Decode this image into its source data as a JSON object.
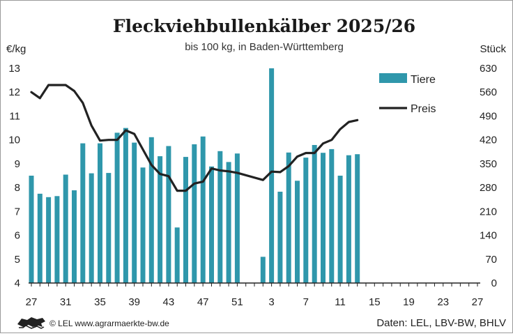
{
  "chart_data": {
    "type": "bar+line",
    "title": "Fleckviehbullenkälber 2025/26",
    "subtitle": "bis 100 kg, in Baden-Württemberg",
    "ylabel_left": "€/kg",
    "ylabel_right": "Stück",
    "ylim_left": [
      4,
      13
    ],
    "ylim_right": [
      0,
      630
    ],
    "yticks_left": [
      "4",
      "5",
      "6",
      "7",
      "8",
      "9",
      "10",
      "11",
      "12",
      "13"
    ],
    "yticks_right": [
      "0",
      "70",
      "140",
      "210",
      "280",
      "350",
      "420",
      "490",
      "560",
      "630"
    ],
    "x_range": [
      0,
      52
    ],
    "xticks": [
      {
        "pos": 0,
        "label": "27"
      },
      {
        "pos": 4,
        "label": "31"
      },
      {
        "pos": 8,
        "label": "35"
      },
      {
        "pos": 12,
        "label": "39"
      },
      {
        "pos": 16,
        "label": "43"
      },
      {
        "pos": 20,
        "label": "47"
      },
      {
        "pos": 24,
        "label": "51"
      },
      {
        "pos": 28,
        "label": "3"
      },
      {
        "pos": 32,
        "label": "7"
      },
      {
        "pos": 36,
        "label": "11"
      },
      {
        "pos": 40,
        "label": "15"
      },
      {
        "pos": 44,
        "label": "19"
      },
      {
        "pos": 48,
        "label": "23"
      },
      {
        "pos": 52,
        "label": "27"
      }
    ],
    "series": [
      {
        "name": "Tiere",
        "type": "bar",
        "axis": "right",
        "color": "#2f97ab",
        "points": [
          {
            "x": 0,
            "y": 315
          },
          {
            "x": 1,
            "y": 262
          },
          {
            "x": 2,
            "y": 252
          },
          {
            "x": 3,
            "y": 255
          },
          {
            "x": 4,
            "y": 318
          },
          {
            "x": 5,
            "y": 272
          },
          {
            "x": 6,
            "y": 410
          },
          {
            "x": 7,
            "y": 322
          },
          {
            "x": 8,
            "y": 410
          },
          {
            "x": 9,
            "y": 323
          },
          {
            "x": 10,
            "y": 441
          },
          {
            "x": 11,
            "y": 455
          },
          {
            "x": 12,
            "y": 412
          },
          {
            "x": 13,
            "y": 339
          },
          {
            "x": 14,
            "y": 428
          },
          {
            "x": 15,
            "y": 372
          },
          {
            "x": 16,
            "y": 402
          },
          {
            "x": 17,
            "y": 163
          },
          {
            "x": 18,
            "y": 370
          },
          {
            "x": 19,
            "y": 407
          },
          {
            "x": 20,
            "y": 430
          },
          {
            "x": 21,
            "y": 342
          },
          {
            "x": 22,
            "y": 387
          },
          {
            "x": 23,
            "y": 355
          },
          {
            "x": 24,
            "y": 380
          },
          {
            "x": 27,
            "y": 77
          },
          {
            "x": 28,
            "y": 630
          },
          {
            "x": 29,
            "y": 268
          },
          {
            "x": 30,
            "y": 383
          },
          {
            "x": 31,
            "y": 300
          },
          {
            "x": 32,
            "y": 368
          },
          {
            "x": 33,
            "y": 405
          },
          {
            "x": 34,
            "y": 382
          },
          {
            "x": 35,
            "y": 393
          },
          {
            "x": 36,
            "y": 315
          },
          {
            "x": 37,
            "y": 375
          },
          {
            "x": 38,
            "y": 378
          }
        ]
      },
      {
        "name": "Preis",
        "type": "line",
        "axis": "left",
        "color": "#222222",
        "points": [
          {
            "x": 0,
            "y": 12.0
          },
          {
            "x": 1,
            "y": 11.75
          },
          {
            "x": 2,
            "y": 12.3
          },
          {
            "x": 3,
            "y": 12.3
          },
          {
            "x": 4,
            "y": 12.3
          },
          {
            "x": 5,
            "y": 12.05
          },
          {
            "x": 6,
            "y": 11.55
          },
          {
            "x": 7,
            "y": 10.6
          },
          {
            "x": 8,
            "y": 9.97
          },
          {
            "x": 9,
            "y": 10.0
          },
          {
            "x": 10,
            "y": 10.0
          },
          {
            "x": 11,
            "y": 10.4
          },
          {
            "x": 12,
            "y": 10.25
          },
          {
            "x": 13,
            "y": 9.6
          },
          {
            "x": 14,
            "y": 8.95
          },
          {
            "x": 15,
            "y": 8.57
          },
          {
            "x": 16,
            "y": 8.48
          },
          {
            "x": 17,
            "y": 7.87
          },
          {
            "x": 18,
            "y": 7.87
          },
          {
            "x": 19,
            "y": 8.17
          },
          {
            "x": 20,
            "y": 8.25
          },
          {
            "x": 21,
            "y": 8.8
          },
          {
            "x": 22,
            "y": 8.72
          },
          {
            "x": 23,
            "y": 8.68
          },
          {
            "x": 24,
            "y": 8.62
          },
          {
            "x": 27,
            "y": 8.32
          },
          {
            "x": 28,
            "y": 8.67
          },
          {
            "x": 29,
            "y": 8.65
          },
          {
            "x": 30,
            "y": 8.9
          },
          {
            "x": 31,
            "y": 9.3
          },
          {
            "x": 32,
            "y": 9.45
          },
          {
            "x": 33,
            "y": 9.45
          },
          {
            "x": 34,
            "y": 9.85
          },
          {
            "x": 35,
            "y": 10.0
          },
          {
            "x": 36,
            "y": 10.45
          },
          {
            "x": 37,
            "y": 10.75
          },
          {
            "x": 38,
            "y": 10.83
          }
        ]
      }
    ],
    "legend": {
      "position": "top-right"
    },
    "grid": false
  },
  "footer": {
    "copyright": "© LEL www.agrarmaerkte-bw.de",
    "source": "Daten: LEL, LBV-BW, BHLV",
    "logo_icon": "lion-logo-icon"
  }
}
